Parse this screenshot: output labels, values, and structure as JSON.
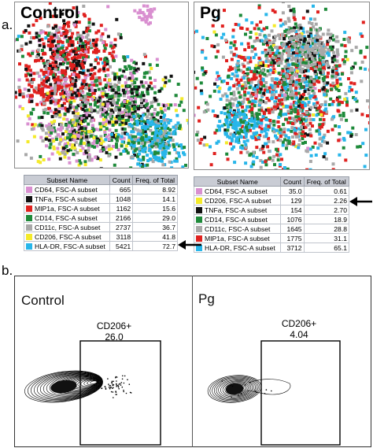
{
  "panel_a_label": "a.",
  "panel_b_label": "b.",
  "tsne": {
    "control_title": "Control",
    "pg_title": "Pg"
  },
  "table_headers": {
    "subset": "Subset Name",
    "count": "Count",
    "freq": "Freq. of Total"
  },
  "control_table": [
    {
      "name": "CD64, FSC-A subset",
      "count": "665",
      "freq": "8.92",
      "color": "#d98fd0"
    },
    {
      "name": "TNFa, FSC-A subset",
      "count": "1048",
      "freq": "14.1",
      "color": "#111111"
    },
    {
      "name": "MIP1a, FSC-A subset",
      "count": "1162",
      "freq": "15.6",
      "color": "#e0211f"
    },
    {
      "name": "CD14, FSC-A subset",
      "count": "2166",
      "freq": "29.0",
      "color": "#1e8a3a"
    },
    {
      "name": "CD11c, FSC-A subset",
      "count": "2737",
      "freq": "36.7",
      "color": "#a8a8a8"
    },
    {
      "name": "CD206, FSC-A subset",
      "count": "3118",
      "freq": "41.8",
      "color": "#f4ea2a"
    },
    {
      "name": "HLA-DR, FSC-A subset",
      "count": "5421",
      "freq": "72.7",
      "color": "#27b6ea"
    }
  ],
  "pg_table": [
    {
      "name": "CD64, FSC-A subset",
      "count": "35.0",
      "freq": "0.61",
      "color": "#d98fd0"
    },
    {
      "name": "CD206, FSC-A subset",
      "count": "129",
      "freq": "2.26",
      "color": "#f4ea2a"
    },
    {
      "name": "TNFa, FSC-A subset",
      "count": "154",
      "freq": "2.70",
      "color": "#111111"
    },
    {
      "name": "CD14, FSC-A subset",
      "count": "1076",
      "freq": "18.9",
      "color": "#1e8a3a"
    },
    {
      "name": "CD11c, FSC-A subset",
      "count": "1645",
      "freq": "28.8",
      "color": "#a8a8a8"
    },
    {
      "name": "MIP1a, FSC-A subset",
      "count": "1775",
      "freq": "31.1",
      "color": "#e0211f"
    },
    {
      "name": "HLA-DR, FSC-A subset",
      "count": "3712",
      "freq": "65.1",
      "color": "#27b6ea"
    }
  ],
  "contour": {
    "control_label": "Control",
    "pg_label": "Pg",
    "control_gate_name": "CD206+",
    "control_gate_value": "26.0",
    "pg_gate_name": "CD206+",
    "pg_gate_value": "4.04"
  },
  "colors": {
    "pink": "#d98fd0",
    "black": "#111111",
    "red": "#e0211f",
    "green": "#1e8a3a",
    "gray": "#a8a8a8",
    "yellow": "#f4ea2a",
    "blue": "#27b6ea"
  }
}
